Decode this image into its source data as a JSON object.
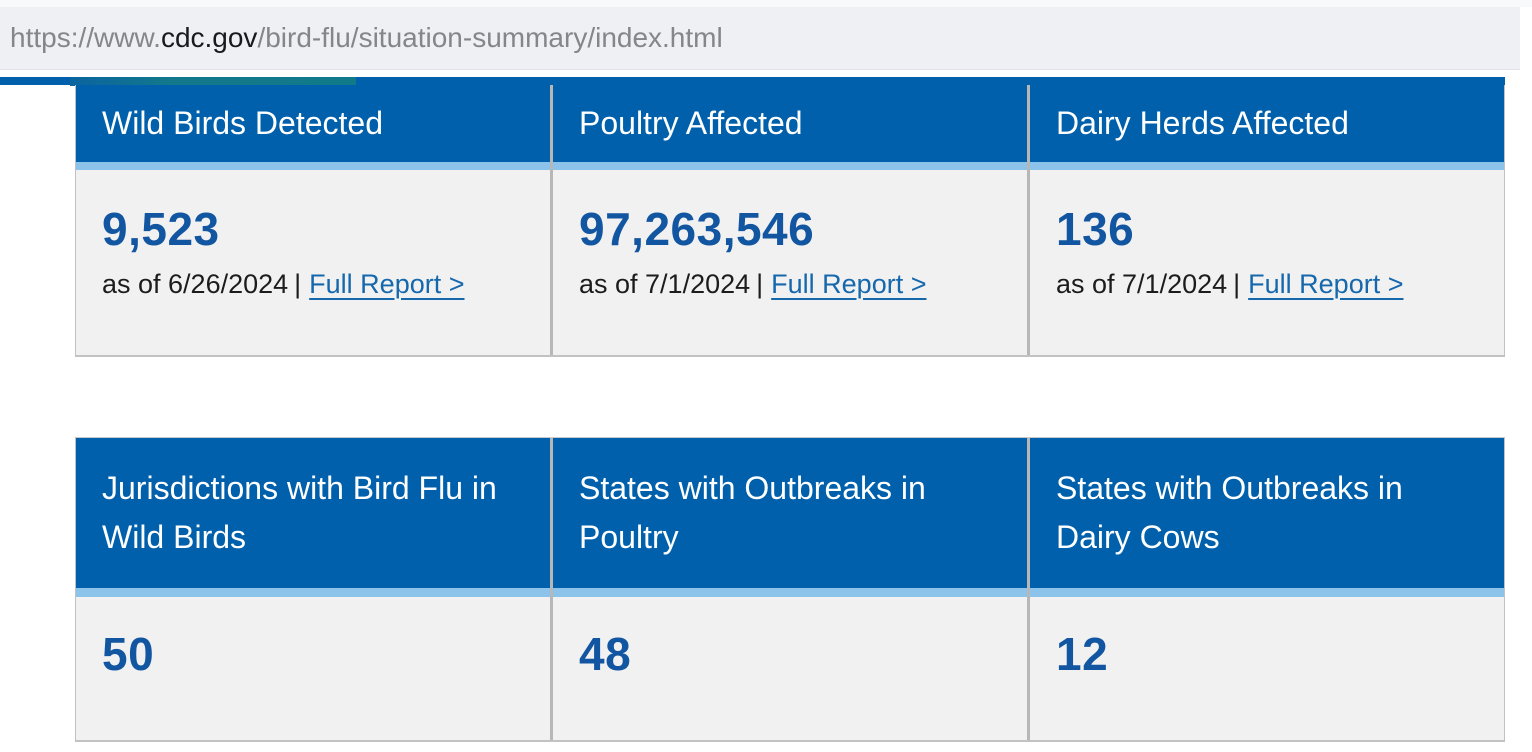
{
  "browser": {
    "url_prefix": "https://www.",
    "url_domain": "cdc.gov",
    "url_path": "/bird-flu/situation-summary/index.html"
  },
  "colors": {
    "header_blue": "#0060ab",
    "stripe_blue": "#8cc3ea",
    "card_body_gray": "#f1f1f1",
    "value_blue": "#1255a0",
    "link_blue": "#1668ad",
    "divider_gray": "#b7b7b7",
    "teal_accent": "#117a8a"
  },
  "stats_primary": {
    "cards": [
      {
        "title": "Wild Birds Detected",
        "value": "9,523",
        "as_of": "as of 6/26/2024",
        "separator": "|",
        "link_label": "Full Report >"
      },
      {
        "title": "Poultry Affected",
        "value": "97,263,546",
        "as_of": "as of 7/1/2024",
        "separator": "|",
        "link_label": "Full Report >"
      },
      {
        "title": "Dairy Herds Affected",
        "value": "136",
        "as_of": "as of 7/1/2024",
        "separator": "|",
        "link_label": "Full Report >"
      }
    ]
  },
  "stats_secondary": {
    "cards": [
      {
        "title": "Jurisdictions with Bird Flu in Wild Birds",
        "value": "50"
      },
      {
        "title": "States with Outbreaks in Poultry",
        "value": "48"
      },
      {
        "title": "States with Outbreaks in Dairy Cows",
        "value": "12"
      }
    ]
  }
}
